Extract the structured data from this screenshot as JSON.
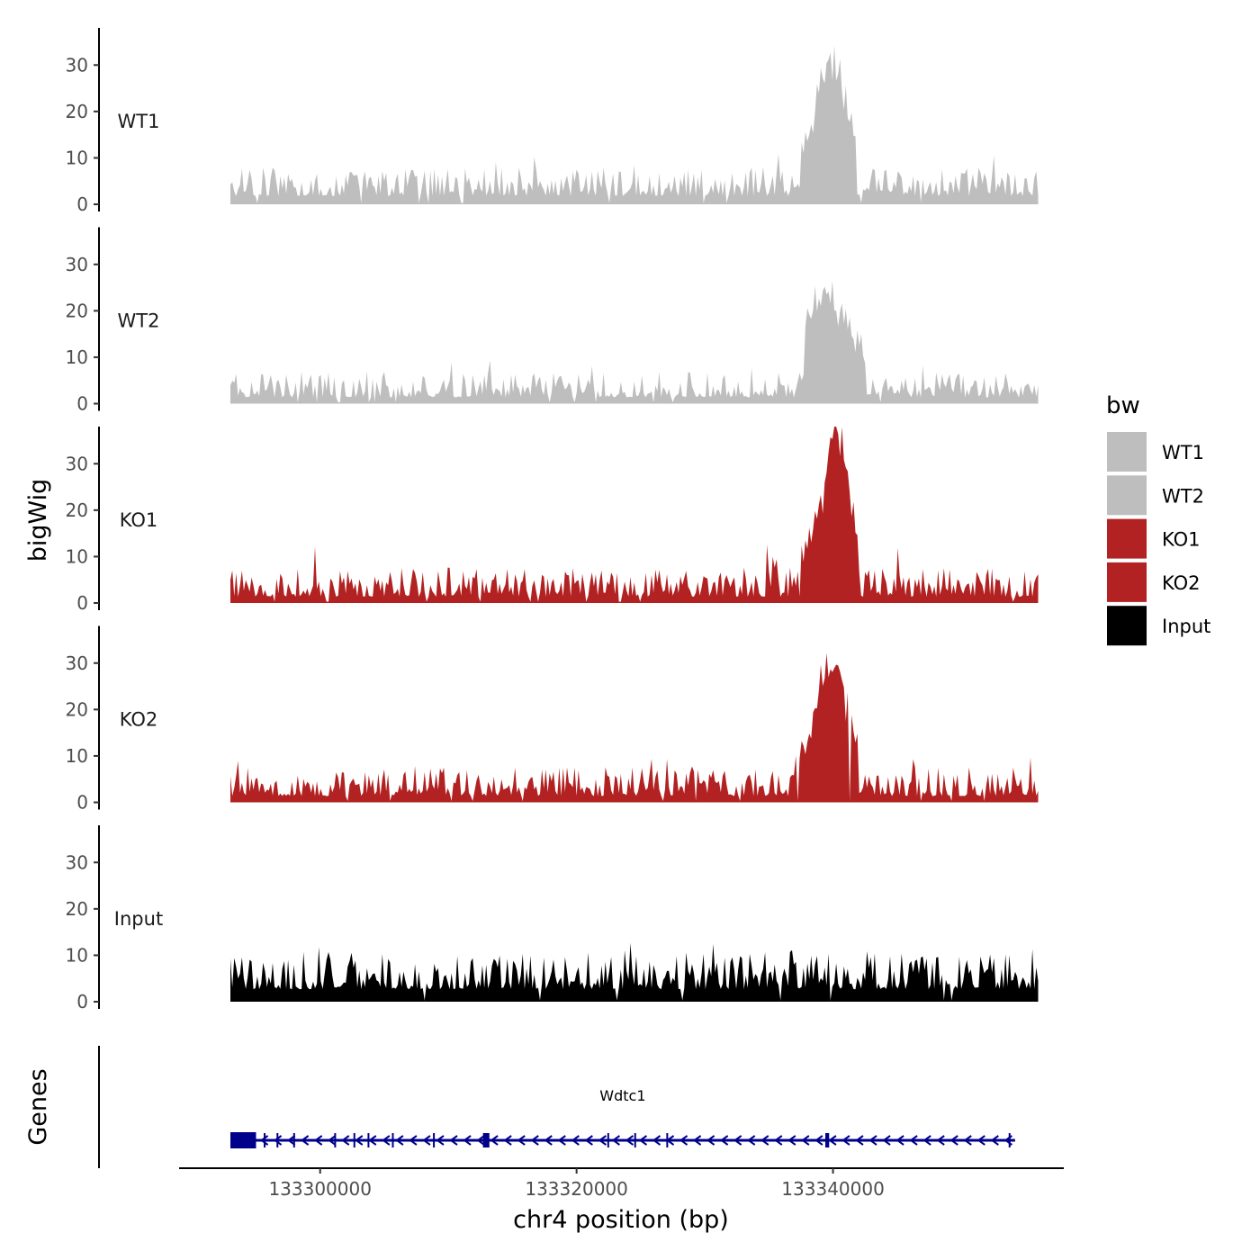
{
  "chart_data": {
    "type": "area",
    "ylabel": "bigWig",
    "xlabel": "chr4 position (bp)",
    "genes_label": "Genes",
    "ylim": [
      0,
      38
    ],
    "yticks": [
      0,
      10,
      20,
      30
    ],
    "xlim": [
      133289000,
      133358000
    ],
    "x_region": [
      133293000,
      133356000
    ],
    "xticks": [
      133300000,
      133320000,
      133340000
    ],
    "xtick_labels": [
      "133300000",
      "133320000",
      "133340000"
    ],
    "legend_title": "bw",
    "series": [
      {
        "name": "WT1",
        "color": "#bebebe",
        "baseline": 4,
        "noise": 7,
        "peak": {
          "start": 133337500,
          "end": 133341800,
          "center": 133339800,
          "height": 28,
          "width": 2000
        }
      },
      {
        "name": "WT2",
        "color": "#bebebe",
        "baseline": 3,
        "noise": 6,
        "peak": {
          "start": 133337800,
          "end": 133342500,
          "center": 133339500,
          "height": 20,
          "width": 2200
        }
      },
      {
        "name": "KO1",
        "color": "#b22222",
        "baseline": 3,
        "noise": 7,
        "peak": {
          "start": 133337500,
          "end": 133342000,
          "center": 133340200,
          "height": 37,
          "width": 1700
        }
      },
      {
        "name": "KO2",
        "color": "#b22222",
        "baseline": 3,
        "noise": 7,
        "peak": {
          "start": 133337000,
          "end": 133342000,
          "center": 133340000,
          "height": 32,
          "width": 1800
        }
      },
      {
        "name": "Input",
        "color": "#000000",
        "baseline": 6,
        "noise": 9,
        "peak": null
      }
    ],
    "gene": {
      "name": "Wdtc1",
      "strand": "-",
      "color": "#00008b",
      "start": 133293000,
      "end": 133354200,
      "exons": [
        [
          133293000,
          133295000
        ],
        [
          133295600,
          133295700
        ],
        [
          133296600,
          133296700
        ],
        [
          133297900,
          133298000
        ],
        [
          133301100,
          133301200
        ],
        [
          133302600,
          133302700
        ],
        [
          133303700,
          133303800
        ],
        [
          133305600,
          133305700
        ],
        [
          133308800,
          133308900
        ],
        [
          133312700,
          133313200
        ],
        [
          133322400,
          133322500
        ],
        [
          133324500,
          133324600
        ],
        [
          133327000,
          133327100
        ],
        [
          133339400,
          133339700
        ],
        [
          133353700,
          133353800
        ]
      ]
    }
  }
}
